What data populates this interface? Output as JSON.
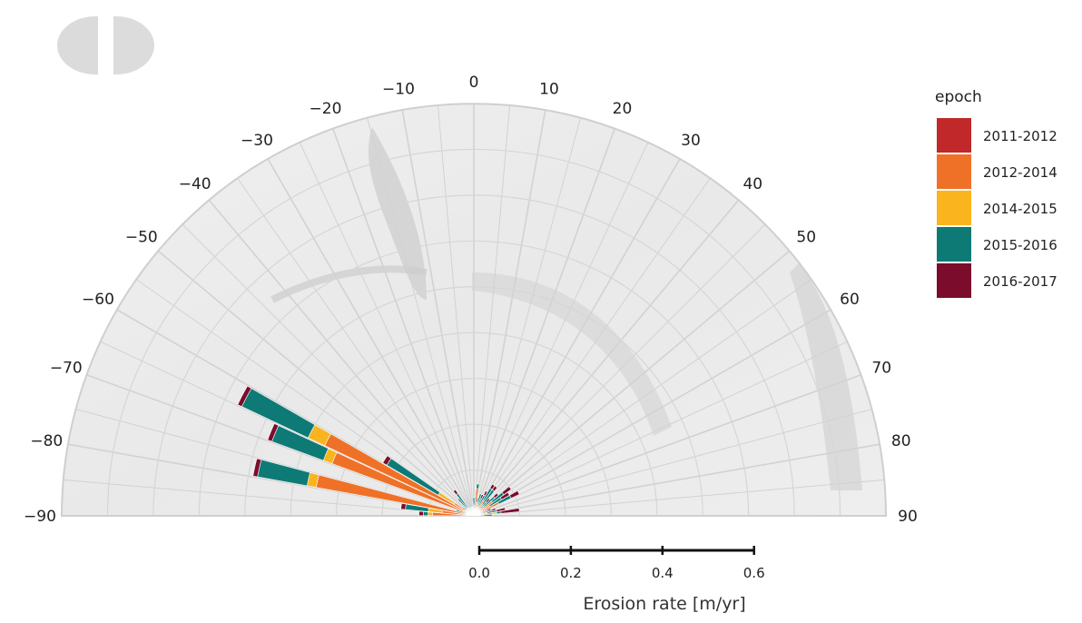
{
  "chart_data": {
    "type": "polar-stacked-bar",
    "angular_axis": {
      "ticks": [
        -90,
        -80,
        -70,
        -60,
        -50,
        -40,
        -30,
        -20,
        -10,
        0,
        10,
        20,
        30,
        40,
        50,
        60,
        70,
        80,
        90
      ],
      "tick_labels": [
        "−90",
        "−80",
        "−70",
        "−60",
        "−50",
        "−40",
        "−30",
        "−20",
        "−10",
        "0",
        "10",
        "20",
        "30",
        "40",
        "50",
        "60",
        "70",
        "80",
        "90"
      ]
    },
    "radial_axis": {
      "label": "Erosion rate [m/yr]",
      "range": [
        0,
        0.9
      ],
      "ticks": [
        0.0,
        0.2,
        0.4,
        0.6
      ],
      "tick_labels": [
        "0.0",
        "0.2",
        "0.4",
        "0.6"
      ]
    },
    "legend": {
      "title": "epoch",
      "position": "right"
    },
    "series": [
      {
        "name": "2011-2012",
        "color": "#c0282a"
      },
      {
        "name": "2012-2014",
        "color": "#ef7127"
      },
      {
        "name": "2014-2015",
        "color": "#f9b41e"
      },
      {
        "name": "2015-2016",
        "color": "#0e7a76"
      },
      {
        "name": "2016-2017",
        "color": "#7b0c2b"
      }
    ],
    "bins": [
      {
        "angle": -87.5,
        "values": [
          0.0,
          0.09,
          0.01,
          0.01,
          0.01
        ]
      },
      {
        "angle": -82.5,
        "values": [
          0.0,
          0.07,
          0.03,
          0.05,
          0.01
        ]
      },
      {
        "angle": -77.5,
        "values": [
          0.01,
          0.34,
          0.02,
          0.11,
          0.01
        ]
      },
      {
        "angle": -72.5,
        "values": [
          0.0,
          0.01,
          0.01,
          0.02,
          0.0
        ]
      },
      {
        "angle": -67.5,
        "values": [
          0.01,
          0.32,
          0.02,
          0.12,
          0.01
        ]
      },
      {
        "angle": -62.5,
        "values": [
          0.02,
          0.34,
          0.04,
          0.16,
          0.01
        ]
      },
      {
        "angle": -57.5,
        "values": [
          0.02,
          0.03,
          0.04,
          0.13,
          0.01
        ]
      },
      {
        "angle": -52.5,
        "values": [
          0.0,
          0.01,
          0.01,
          0.01,
          0.0
        ]
      },
      {
        "angle": -47.5,
        "values": [
          0.0,
          0.01,
          0.0,
          0.01,
          0.0
        ]
      },
      {
        "angle": -42.5,
        "values": [
          0.01,
          0.01,
          0.0,
          0.03,
          0.0
        ]
      },
      {
        "angle": -37.5,
        "values": [
          0.01,
          0.01,
          0.0,
          0.04,
          0.01
        ]
      },
      {
        "angle": -32.5,
        "values": [
          0.0,
          0.01,
          0.0,
          0.01,
          0.0
        ]
      },
      {
        "angle": -27.5,
        "values": [
          0.0,
          0.0,
          0.0,
          0.01,
          0.0
        ]
      },
      {
        "angle": -22.5,
        "values": [
          0.0,
          0.01,
          0.0,
          0.01,
          0.0
        ]
      },
      {
        "angle": -17.5,
        "values": [
          0.0,
          0.0,
          0.0,
          0.01,
          0.0
        ]
      },
      {
        "angle": -12.5,
        "values": [
          0.0,
          0.01,
          0.0,
          0.01,
          0.0
        ]
      },
      {
        "angle": -7.5,
        "values": [
          0.0,
          0.01,
          0.0,
          0.01,
          0.0
        ]
      },
      {
        "angle": -2.5,
        "values": [
          0.0,
          0.01,
          0.0,
          0.03,
          0.0
        ]
      },
      {
        "angle": 2.5,
        "values": [
          0.0,
          0.01,
          0.0,
          0.03,
          0.0
        ]
      },
      {
        "angle": 7.5,
        "values": [
          0.0,
          0.06,
          0.0,
          0.01,
          0.0
        ]
      },
      {
        "angle": 12.5,
        "values": [
          0.0,
          0.03,
          0.0,
          0.01,
          0.0
        ]
      },
      {
        "angle": 17.5,
        "values": [
          0.0,
          0.03,
          0.0,
          0.02,
          0.0
        ]
      },
      {
        "angle": 22.5,
        "values": [
          0.01,
          0.01,
          0.0,
          0.02,
          0.01
        ]
      },
      {
        "angle": 27.5,
        "values": [
          0.0,
          0.02,
          0.0,
          0.03,
          0.01
        ]
      },
      {
        "angle": 32.5,
        "values": [
          0.0,
          0.04,
          0.0,
          0.03,
          0.01
        ]
      },
      {
        "angle": 37.5,
        "values": [
          0.0,
          0.03,
          0.0,
          0.04,
          0.01
        ]
      },
      {
        "angle": 42.5,
        "values": [
          0.0,
          0.02,
          0.0,
          0.02,
          0.01
        ]
      },
      {
        "angle": 47.5,
        "values": [
          0.0,
          0.03,
          0.0,
          0.03,
          0.01
        ]
      },
      {
        "angle": 52.5,
        "values": [
          0.0,
          0.05,
          0.0,
          0.03,
          0.02
        ]
      },
      {
        "angle": 57.5,
        "values": [
          0.0,
          0.04,
          0.0,
          0.03,
          0.02
        ]
      },
      {
        "angle": 62.5,
        "values": [
          0.0,
          0.06,
          0.0,
          0.03,
          0.02
        ]
      },
      {
        "angle": 67.5,
        "values": [
          0.0,
          0.01,
          0.0,
          0.02,
          0.01
        ]
      },
      {
        "angle": 72.5,
        "values": [
          0.0,
          0.02,
          0.0,
          0.02,
          0.01
        ]
      },
      {
        "angle": 77.5,
        "values": [
          0.0,
          0.02,
          0.01,
          0.02,
          0.02
        ]
      },
      {
        "angle": 82.5,
        "values": [
          0.02,
          0.02,
          0.01,
          0.01,
          0.04
        ]
      },
      {
        "angle": 87.5,
        "values": [
          0.0,
          0.01,
          0.0,
          0.0,
          0.03
        ]
      }
    ]
  }
}
